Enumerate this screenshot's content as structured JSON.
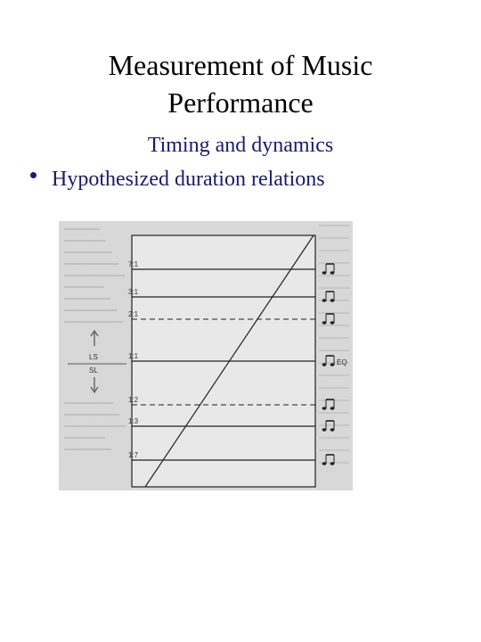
{
  "slide": {
    "title_line1": "Measurement of Music",
    "title_line2": "Performance",
    "subtitle": "Timing and dynamics",
    "bullet": "Hypothesized duration relations"
  },
  "figure": {
    "ratios": [
      {
        "label": "7:1",
        "line": "solid"
      },
      {
        "label": "3:1",
        "line": "solid"
      },
      {
        "label": "2:1",
        "line": "dashed"
      },
      {
        "label": "1:1",
        "line": "solid",
        "note_text": "EQ"
      },
      {
        "label": "1:2",
        "line": "dashed"
      },
      {
        "label": "1:3",
        "line": "solid"
      },
      {
        "label": "1:7",
        "line": "solid"
      }
    ],
    "ls_label": "LS",
    "sl_label": "SL"
  }
}
